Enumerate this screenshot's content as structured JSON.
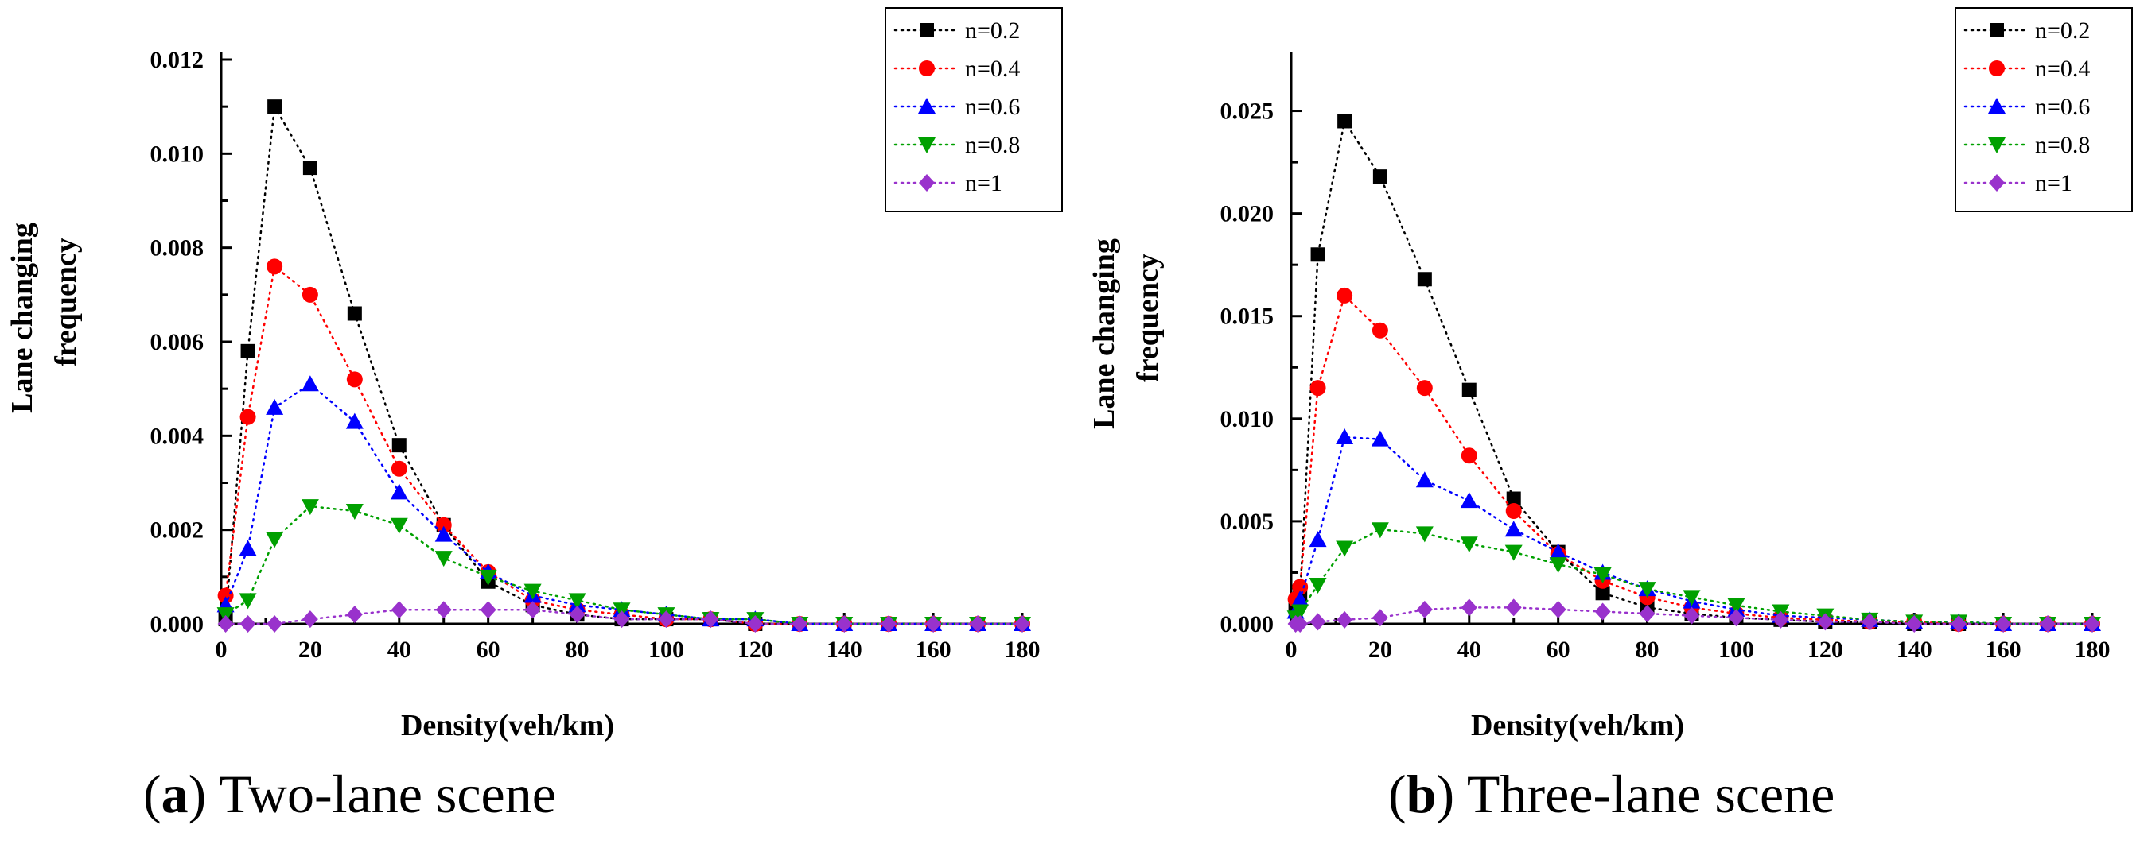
{
  "colors": {
    "n=0.2": "#000000",
    "n=0.4": "#ff0000",
    "n=0.6": "#0000ff",
    "n=0.8": "#00a000",
    "n=1": "#9932cc"
  },
  "chart_data": [
    {
      "id": "a",
      "type": "line",
      "caption_letter": "a",
      "caption_text": " Two-lane scene",
      "xlabel": "Density(veh/km)",
      "ylabel_line1": "Lane changing",
      "ylabel_line2": "frequency",
      "xlim": [
        0,
        180
      ],
      "ylim": [
        0,
        0.012
      ],
      "xticks": [
        0,
        20,
        40,
        60,
        80,
        100,
        120,
        140,
        160,
        180
      ],
      "yticks": [
        0.0,
        0.002,
        0.004,
        0.006,
        0.008,
        0.01,
        0.012
      ],
      "ytick_labels": [
        "0.000",
        "0.002",
        "0.004",
        "0.006",
        "0.008",
        "0.010",
        "0.012"
      ],
      "legend_position": "top-right",
      "series": [
        {
          "name": "n=0.2",
          "marker": "square",
          "x": [
            1,
            6,
            12,
            20,
            30,
            40,
            50,
            60,
            70,
            80,
            90,
            100,
            110,
            120,
            130,
            140,
            150,
            160,
            170,
            180
          ],
          "y": [
            0.0001,
            0.0058,
            0.011,
            0.0097,
            0.0066,
            0.0038,
            0.0021,
            0.0009,
            0.0004,
            0.0002,
            0.0001,
            0.0001,
            0.0001,
            0,
            0,
            0,
            0,
            0,
            0,
            0
          ]
        },
        {
          "name": "n=0.4",
          "marker": "circle",
          "x": [
            1,
            6,
            12,
            20,
            30,
            40,
            50,
            60,
            70,
            80,
            90,
            100,
            110,
            120,
            130,
            140,
            150,
            160,
            170,
            180
          ],
          "y": [
            0.0006,
            0.0044,
            0.0076,
            0.007,
            0.0052,
            0.0033,
            0.0021,
            0.0011,
            0.0005,
            0.0003,
            0.0002,
            0.0001,
            0.0001,
            0,
            0,
            0,
            0,
            0,
            0,
            0
          ]
        },
        {
          "name": "n=0.6",
          "marker": "triangle-up",
          "x": [
            1,
            6,
            12,
            20,
            30,
            40,
            50,
            60,
            70,
            80,
            90,
            100,
            110,
            120,
            130,
            140,
            150,
            160,
            170,
            180
          ],
          "y": [
            0.0004,
            0.0016,
            0.0046,
            0.0051,
            0.0043,
            0.0028,
            0.0019,
            0.0011,
            0.0006,
            0.0004,
            0.0003,
            0.0002,
            0.0001,
            0.0001,
            0,
            0,
            0,
            0,
            0,
            0
          ]
        },
        {
          "name": "n=0.8",
          "marker": "triangle-down",
          "x": [
            1,
            6,
            12,
            20,
            30,
            40,
            50,
            60,
            70,
            80,
            90,
            100,
            110,
            120,
            130,
            140,
            150,
            160,
            170,
            180
          ],
          "y": [
            0.0002,
            0.0005,
            0.0018,
            0.0025,
            0.0024,
            0.0021,
            0.0014,
            0.001,
            0.0007,
            0.0005,
            0.0003,
            0.0002,
            0.0001,
            0.0001,
            0,
            0,
            0,
            0,
            0,
            0
          ]
        },
        {
          "name": "n=1",
          "marker": "diamond",
          "x": [
            1,
            6,
            12,
            20,
            30,
            40,
            50,
            60,
            70,
            80,
            90,
            100,
            110,
            120,
            130,
            140,
            150,
            160,
            170,
            180
          ],
          "y": [
            0,
            0,
            0,
            0.0001,
            0.0002,
            0.0003,
            0.0003,
            0.0003,
            0.0003,
            0.0002,
            0.0001,
            0.0001,
            0.0001,
            0,
            0,
            0,
            0,
            0,
            0,
            0
          ]
        }
      ]
    },
    {
      "id": "b",
      "type": "line",
      "caption_letter": "b",
      "caption_text": " Three-lane scene",
      "xlabel": "Density(veh/km)",
      "ylabel_line1": "Lane changing",
      "ylabel_line2": "frequency",
      "xlim": [
        0,
        180
      ],
      "ylim": [
        0,
        0.0275
      ],
      "xticks": [
        0,
        20,
        40,
        60,
        80,
        100,
        120,
        140,
        160,
        180
      ],
      "yticks": [
        0.0,
        0.005,
        0.01,
        0.015,
        0.02,
        0.025
      ],
      "ytick_labels": [
        "0.000",
        "0.005",
        "0.010",
        "0.015",
        "0.020",
        "0.025"
      ],
      "legend_position": "top-right",
      "series": [
        {
          "name": "n=0.2",
          "marker": "square",
          "x": [
            1,
            2,
            6,
            12,
            20,
            30,
            40,
            50,
            60,
            70,
            80,
            90,
            100,
            110,
            120,
            130,
            140,
            150,
            160,
            170,
            180
          ],
          "y": [
            0.0008,
            0.0014,
            0.018,
            0.0245,
            0.0218,
            0.0168,
            0.0114,
            0.0061,
            0.0035,
            0.0015,
            0.0008,
            0.0005,
            0.0003,
            0.0002,
            0.0001,
            0.0001,
            0,
            0,
            0,
            0,
            0
          ]
        },
        {
          "name": "n=0.4",
          "marker": "circle",
          "x": [
            1,
            2,
            6,
            12,
            20,
            30,
            40,
            50,
            60,
            70,
            80,
            90,
            100,
            110,
            120,
            130,
            140,
            150,
            160,
            170,
            180
          ],
          "y": [
            0.0012,
            0.0018,
            0.0115,
            0.016,
            0.0143,
            0.0115,
            0.0082,
            0.0055,
            0.0034,
            0.0021,
            0.0013,
            0.0008,
            0.0005,
            0.0003,
            0.0002,
            0.0001,
            0.0001,
            0,
            0,
            0,
            0
          ]
        },
        {
          "name": "n=0.6",
          "marker": "triangle-up",
          "x": [
            1,
            2,
            6,
            12,
            20,
            30,
            40,
            50,
            60,
            70,
            80,
            90,
            100,
            110,
            120,
            130,
            140,
            150,
            160,
            170,
            180
          ],
          "y": [
            0.0006,
            0.0012,
            0.0041,
            0.0091,
            0.009,
            0.007,
            0.006,
            0.0046,
            0.0035,
            0.0025,
            0.0017,
            0.0011,
            0.0007,
            0.0004,
            0.0003,
            0.0002,
            0.0001,
            0.0001,
            0,
            0,
            0
          ]
        },
        {
          "name": "n=0.8",
          "marker": "triangle-down",
          "x": [
            1,
            2,
            6,
            12,
            20,
            30,
            40,
            50,
            60,
            70,
            80,
            90,
            100,
            110,
            120,
            130,
            140,
            150,
            160,
            170,
            180
          ],
          "y": [
            0.0003,
            0.0006,
            0.0019,
            0.0037,
            0.0046,
            0.0044,
            0.0039,
            0.0035,
            0.0029,
            0.0024,
            0.0017,
            0.0013,
            0.0009,
            0.0006,
            0.0004,
            0.0002,
            0.0001,
            0.0001,
            0,
            0,
            0
          ]
        },
        {
          "name": "n=1",
          "marker": "diamond",
          "x": [
            1,
            2,
            6,
            12,
            20,
            30,
            40,
            50,
            60,
            70,
            80,
            90,
            100,
            110,
            120,
            130,
            140,
            150,
            160,
            170,
            180
          ],
          "y": [
            0,
            0,
            0.0001,
            0.0002,
            0.0003,
            0.0007,
            0.0008,
            0.0008,
            0.0007,
            0.0006,
            0.0005,
            0.0004,
            0.0003,
            0.0002,
            0.0001,
            0.0001,
            0,
            0,
            0,
            0,
            0
          ]
        }
      ]
    }
  ]
}
